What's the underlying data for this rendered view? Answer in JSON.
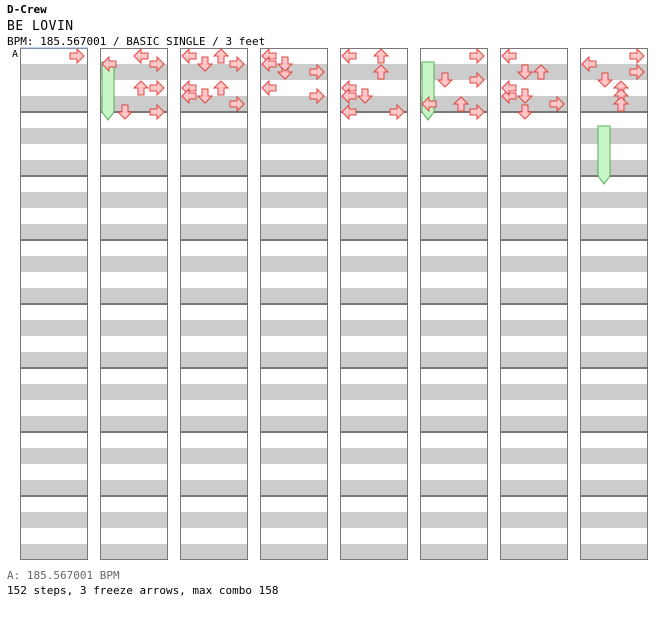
{
  "header": {
    "artist": "D-Crew",
    "title": "BE LOVIN",
    "info": "BPM: 185.567001 / BASIC SINGLE / 3 feet"
  },
  "chart": {
    "bpm_marker_label": "A",
    "columns": 8,
    "measures_per_column": 8,
    "freeze_color": "#c8f5c8",
    "arrow_color": "#ffc8c8",
    "notes": [
      [
        0,
        0,
        3,
        "R"
      ],
      [
        1,
        0,
        2,
        "L"
      ],
      [
        1,
        1,
        0,
        "L"
      ],
      [
        1,
        1,
        3,
        "R"
      ],
      [
        1,
        4,
        3,
        "R"
      ],
      [
        1,
        4,
        2,
        "U"
      ],
      [
        1,
        7,
        1,
        "D"
      ],
      [
        1,
        7,
        3,
        "R"
      ],
      [
        2,
        0,
        2,
        "U"
      ],
      [
        2,
        0,
        0,
        "L"
      ],
      [
        2,
        4,
        2,
        "U"
      ],
      [
        2,
        4,
        0,
        "L"
      ],
      [
        2,
        1,
        1,
        "D"
      ],
      [
        2,
        1,
        3,
        "R"
      ],
      [
        2,
        6,
        3,
        "R"
      ],
      [
        2,
        5,
        1,
        "D"
      ],
      [
        2,
        5,
        0,
        "L"
      ],
      [
        3,
        0,
        0,
        "L"
      ],
      [
        3,
        4,
        0,
        "L"
      ],
      [
        3,
        2,
        1,
        "D"
      ],
      [
        3,
        2,
        3,
        "R"
      ],
      [
        3,
        5,
        3,
        "R"
      ],
      [
        3,
        1,
        1,
        "D"
      ],
      [
        3,
        1,
        0,
        "L"
      ],
      [
        4,
        0,
        0,
        "L"
      ],
      [
        4,
        0,
        2,
        "U"
      ],
      [
        4,
        4,
        0,
        "L"
      ],
      [
        4,
        5,
        0,
        "L"
      ],
      [
        4,
        5,
        1,
        "D"
      ],
      [
        4,
        2,
        2,
        "U"
      ],
      [
        4,
        7,
        0,
        "L"
      ],
      [
        4,
        7,
        3,
        "R"
      ],
      [
        5,
        0,
        3,
        "R"
      ],
      [
        5,
        3,
        3,
        "R"
      ],
      [
        5,
        3,
        1,
        "D"
      ],
      [
        5,
        6,
        0,
        "L"
      ],
      [
        5,
        6,
        2,
        "U"
      ],
      [
        5,
        7,
        3,
        "R"
      ],
      [
        6,
        0,
        0,
        "L"
      ],
      [
        6,
        5,
        1,
        "D"
      ],
      [
        6,
        5,
        0,
        "L"
      ],
      [
        6,
        2,
        1,
        "D"
      ],
      [
        6,
        2,
        2,
        "U"
      ],
      [
        6,
        6,
        3,
        "R"
      ],
      [
        6,
        4,
        0,
        "L"
      ],
      [
        6,
        7,
        1,
        "D"
      ],
      [
        7,
        0,
        3,
        "R"
      ],
      [
        7,
        1,
        0,
        "L"
      ],
      [
        7,
        2,
        3,
        "R"
      ],
      [
        7,
        4,
        2,
        "U"
      ],
      [
        7,
        5,
        2,
        "U"
      ],
      [
        7,
        6,
        2,
        "U"
      ],
      [
        7,
        3,
        1,
        "D"
      ]
    ]
  },
  "footer": {
    "legend": "A: 185.567001 BPM",
    "summary": "152 steps, 3 freeze arrows, max combo 158"
  }
}
